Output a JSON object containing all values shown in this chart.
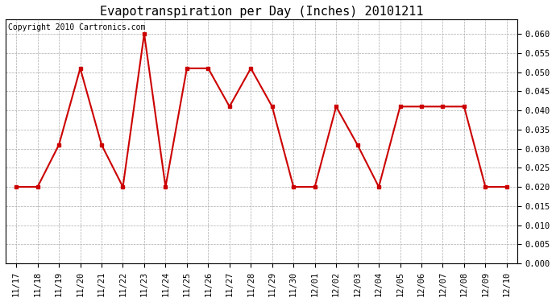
{
  "title": "Evapotranspiration per Day (Inches) 20101211",
  "copyright_text": "Copyright 2010 Cartronics.com",
  "labels": [
    "11/17",
    "11/18",
    "11/19",
    "11/20",
    "11/21",
    "11/22",
    "11/23",
    "11/24",
    "11/25",
    "11/26",
    "11/27",
    "11/28",
    "11/29",
    "11/30",
    "12/01",
    "12/02",
    "12/03",
    "12/04",
    "12/05",
    "12/06",
    "12/07",
    "12/08",
    "12/09",
    "12/10"
  ],
  "values": [
    0.02,
    0.02,
    0.031,
    0.051,
    0.031,
    0.02,
    0.06,
    0.02,
    0.051,
    0.051,
    0.041,
    0.051,
    0.041,
    0.02,
    0.02,
    0.041,
    0.031,
    0.02,
    0.041,
    0.041,
    0.041,
    0.041,
    0.02,
    0.02
  ],
  "line_color": "#cc0000",
  "marker": "s",
  "marker_size": 3,
  "ylim": [
    0.0,
    0.0637
  ],
  "yticks": [
    0.0,
    0.005,
    0.01,
    0.015,
    0.02,
    0.025,
    0.03,
    0.035,
    0.04,
    0.045,
    0.05,
    0.055,
    0.06
  ],
  "background_color": "#ffffff",
  "plot_bg_color": "#ffffff",
  "grid_color": "#aaaaaa",
  "title_fontsize": 11,
  "copyright_fontsize": 7,
  "tick_fontsize": 7.5
}
